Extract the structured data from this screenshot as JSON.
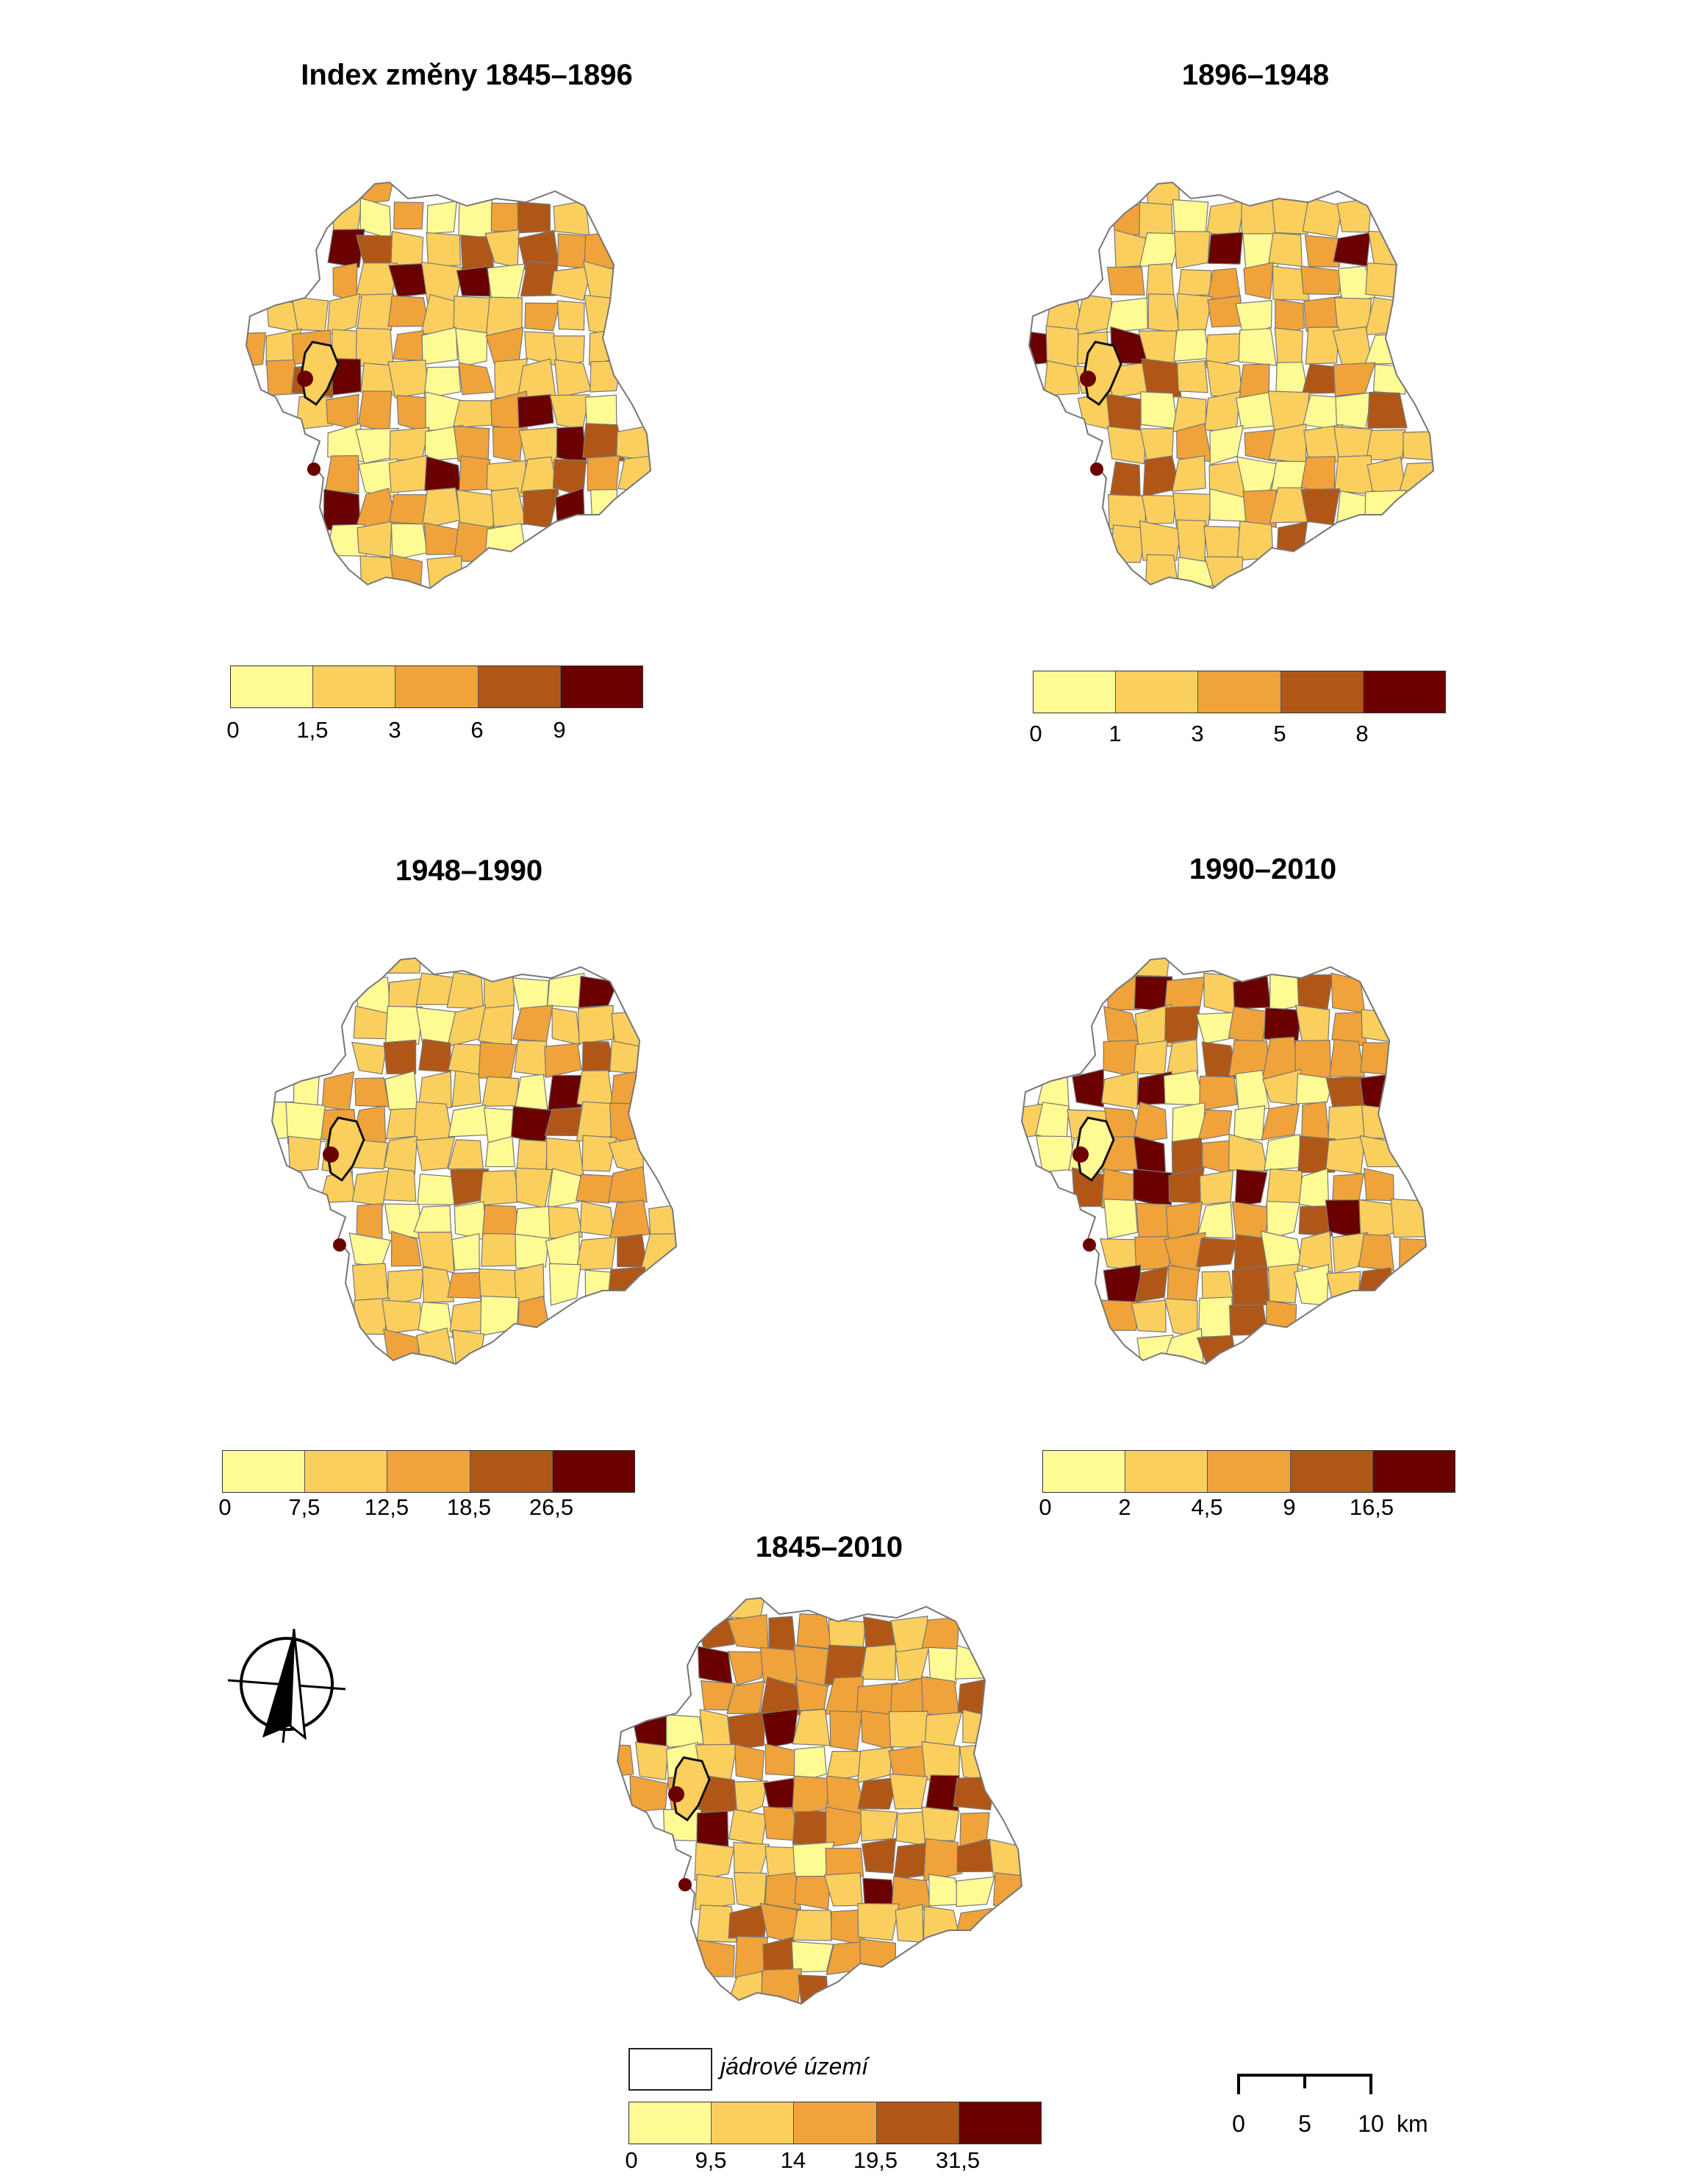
{
  "colors": {
    "classes": [
      "#fefa94",
      "#fbcf5e",
      "#f0a33a",
      "#b05718",
      "#6a0000"
    ],
    "border": "#777777",
    "core_border": "#111111"
  },
  "panels": [
    {
      "title": "Index změny 1845–1896",
      "breaks": [
        "0",
        "1,5",
        "3",
        "6",
        "9"
      ]
    },
    {
      "title": "1896–1948",
      "breaks": [
        "0",
        "1",
        "3",
        "5",
        "8"
      ]
    },
    {
      "title": "1948–1990",
      "breaks": [
        "0",
        "7,5",
        "12,5",
        "18,5",
        "26,5"
      ]
    },
    {
      "title": "1990–2010",
      "breaks": [
        "0",
        "2",
        "4,5",
        "9",
        "16,5"
      ]
    },
    {
      "title": "1845–2010",
      "breaks": [
        "0",
        "9,5",
        "14",
        "19,5",
        "31,5"
      ]
    }
  ],
  "legend_core": {
    "label": "jádrové území"
  },
  "scale": {
    "ticks": [
      "0",
      "5",
      "10"
    ],
    "unit": "km"
  },
  "north_arrow": {
    "icon": "north-arrow-icon"
  }
}
